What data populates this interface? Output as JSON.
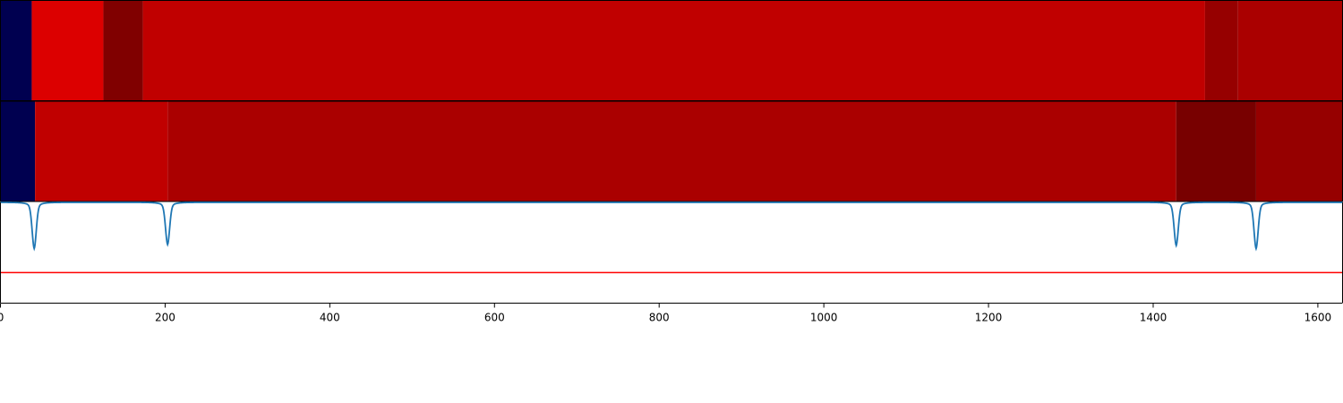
{
  "chart_data": {
    "type": "heatmap",
    "xlim": [
      0,
      1630
    ],
    "xticks": [
      0,
      200,
      400,
      600,
      800,
      1000,
      1200,
      1400,
      1600
    ],
    "xtick_labels": [
      "0",
      "200",
      "400",
      "600",
      "800",
      "1000",
      "1200",
      "1400",
      "1600"
    ],
    "segment_rows": [
      {
        "segments": [
          {
            "start": 0,
            "end": 38,
            "color": "#000050"
          },
          {
            "start": 38,
            "end": 125,
            "color": "#dc0000"
          },
          {
            "start": 125,
            "end": 173,
            "color": "#800000"
          },
          {
            "start": 173,
            "end": 1463,
            "color": "#c00000"
          },
          {
            "start": 1463,
            "end": 1503,
            "color": "#960000"
          },
          {
            "start": 1503,
            "end": 1630,
            "color": "#aa0000"
          }
        ]
      },
      {
        "segments": [
          {
            "start": 0,
            "end": 42,
            "color": "#000050"
          },
          {
            "start": 42,
            "end": 203,
            "color": "#c00000"
          },
          {
            "start": 203,
            "end": 1428,
            "color": "#aa0000"
          },
          {
            "start": 1428,
            "end": 1525,
            "color": "#780000"
          },
          {
            "start": 1525,
            "end": 1630,
            "color": "#960000"
          }
        ]
      }
    ],
    "signal": {
      "color": "#1f77b4",
      "baseline": 1.0,
      "dips": [
        {
          "x": 41,
          "depth": 0.46,
          "width": 2.5
        },
        {
          "x": 203,
          "depth": 0.42,
          "width": 2.5
        },
        {
          "x": 1428,
          "depth": 0.43,
          "width": 2.5
        },
        {
          "x": 1525,
          "depth": 0.46,
          "width": 2.5
        }
      ]
    },
    "threshold": {
      "value": 0.3,
      "color": "#ff0000"
    },
    "ylim_signal": [
      0,
      1.0
    ]
  }
}
